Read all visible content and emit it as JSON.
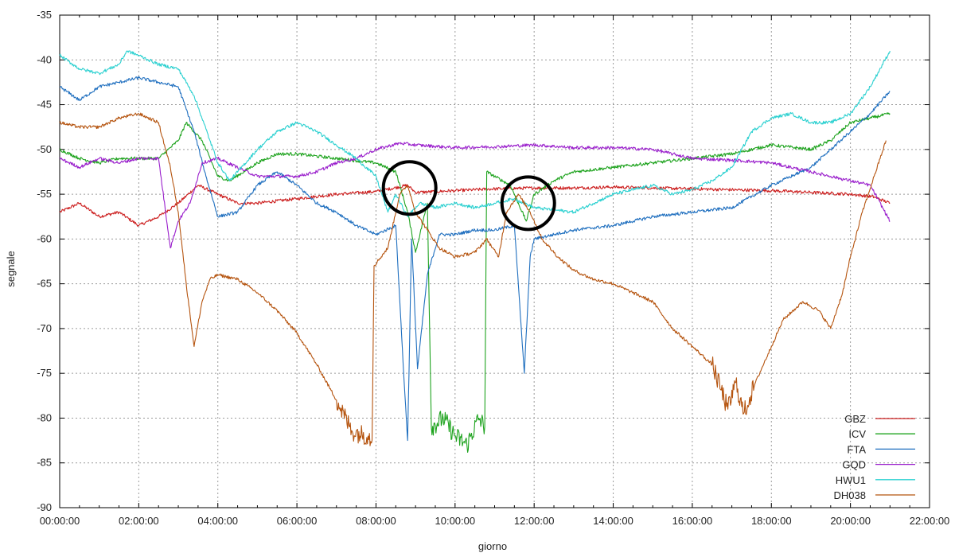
{
  "chart_data": {
    "type": "line",
    "xlabel": "giorno",
    "ylabel": "segnale",
    "xlim": [
      0,
      22
    ],
    "ylim": [
      -90,
      -35
    ],
    "x_ticks": [
      "00:00:00",
      "02:00:00",
      "04:00:00",
      "06:00:00",
      "08:00:00",
      "10:00:00",
      "12:00:00",
      "14:00:00",
      "16:00:00",
      "18:00:00",
      "20:00:00",
      "22:00:00"
    ],
    "y_ticks": [
      "-35",
      "-40",
      "-45",
      "-50",
      "-55",
      "-60",
      "-65",
      "-70",
      "-75",
      "-80",
      "-85",
      "-90"
    ],
    "grid": true,
    "legend_position": "bottom-right",
    "series": [
      {
        "name": "GBZ",
        "color": "#cc1f1f",
        "points": [
          [
            0,
            -57
          ],
          [
            0.5,
            -56
          ],
          [
            1,
            -57.5
          ],
          [
            1.5,
            -57
          ],
          [
            2,
            -58.5
          ],
          [
            2.5,
            -57.5
          ],
          [
            3,
            -56
          ],
          [
            3.5,
            -54
          ],
          [
            4,
            -55
          ],
          [
            4.5,
            -56
          ],
          [
            5,
            -56
          ],
          [
            6,
            -55.5
          ],
          [
            7,
            -55
          ],
          [
            8,
            -54.7
          ],
          [
            8.8,
            -54
          ],
          [
            9,
            -54.8
          ],
          [
            10,
            -54.6
          ],
          [
            11,
            -54.4
          ],
          [
            12,
            -54.3
          ],
          [
            13,
            -54.3
          ],
          [
            14,
            -54.2
          ],
          [
            15,
            -54.3
          ],
          [
            16,
            -54.4
          ],
          [
            17,
            -54.5
          ],
          [
            18,
            -54.6
          ],
          [
            19,
            -54.8
          ],
          [
            20,
            -55
          ],
          [
            20.6,
            -55.3
          ],
          [
            21,
            -56
          ]
        ]
      },
      {
        "name": "ICV",
        "color": "#1ea31e",
        "points": [
          [
            0,
            -50
          ],
          [
            0.5,
            -51
          ],
          [
            1,
            -51.5
          ],
          [
            1.5,
            -51
          ],
          [
            2,
            -51
          ],
          [
            2.5,
            -51
          ],
          [
            3,
            -49
          ],
          [
            3.2,
            -47
          ],
          [
            3.6,
            -49
          ],
          [
            4,
            -53
          ],
          [
            4.3,
            -53.5
          ],
          [
            5,
            -51.5
          ],
          [
            5.5,
            -50.5
          ],
          [
            6,
            -50.5
          ],
          [
            7,
            -51
          ],
          [
            8,
            -51.5
          ],
          [
            8.5,
            -52.5
          ],
          [
            8.8,
            -57
          ],
          [
            9,
            -61.5
          ],
          [
            9.3,
            -56
          ],
          [
            9.4,
            -81
          ],
          [
            9.7,
            -80
          ],
          [
            10,
            -82
          ],
          [
            10.3,
            -83
          ],
          [
            10.6,
            -80
          ],
          [
            10.75,
            -81
          ],
          [
            10.8,
            -52.5
          ],
          [
            11,
            -53
          ],
          [
            11.4,
            -54
          ],
          [
            11.8,
            -58
          ],
          [
            12,
            -55
          ],
          [
            12.5,
            -53.5
          ],
          [
            13,
            -52.5
          ],
          [
            14,
            -52
          ],
          [
            15,
            -51.5
          ],
          [
            16,
            -51
          ],
          [
            17,
            -50.5
          ],
          [
            18,
            -49.5
          ],
          [
            19,
            -50
          ],
          [
            19.5,
            -49
          ],
          [
            20,
            -47
          ],
          [
            20.5,
            -46.5
          ],
          [
            21,
            -46
          ]
        ]
      },
      {
        "name": "FTA",
        "color": "#1f6fbf",
        "points": [
          [
            0,
            -43
          ],
          [
            0.5,
            -44.5
          ],
          [
            1,
            -43
          ],
          [
            1.5,
            -42.5
          ],
          [
            2,
            -42
          ],
          [
            2.5,
            -42.5
          ],
          [
            3,
            -43
          ],
          [
            3.4,
            -48
          ],
          [
            3.7,
            -53
          ],
          [
            4,
            -57.5
          ],
          [
            4.5,
            -57
          ],
          [
            5,
            -54
          ],
          [
            5.5,
            -52.5
          ],
          [
            6,
            -54
          ],
          [
            6.5,
            -56
          ],
          [
            7,
            -57
          ],
          [
            7.5,
            -58.5
          ],
          [
            8,
            -59.5
          ],
          [
            8.5,
            -58.5
          ],
          [
            8.7,
            -75
          ],
          [
            8.8,
            -82.5
          ],
          [
            8.9,
            -60
          ],
          [
            9.05,
            -74.5
          ],
          [
            9.3,
            -64
          ],
          [
            9.6,
            -59.5
          ],
          [
            10,
            -59.5
          ],
          [
            10.5,
            -59
          ],
          [
            11,
            -59
          ],
          [
            11.5,
            -58.5
          ],
          [
            11.75,
            -75
          ],
          [
            11.9,
            -62
          ],
          [
            12,
            -60
          ],
          [
            13,
            -59
          ],
          [
            14,
            -58.5
          ],
          [
            15,
            -57.5
          ],
          [
            16,
            -57
          ],
          [
            17,
            -56.5
          ],
          [
            18,
            -54
          ],
          [
            19,
            -52
          ],
          [
            19.5,
            -50
          ],
          [
            20,
            -48
          ],
          [
            20.5,
            -46
          ],
          [
            21,
            -43.5
          ]
        ]
      },
      {
        "name": "GQD",
        "color": "#9a1fcc",
        "points": [
          [
            0,
            -51
          ],
          [
            0.5,
            -52
          ],
          [
            1,
            -51
          ],
          [
            1.5,
            -51.5
          ],
          [
            2,
            -51
          ],
          [
            2.5,
            -51
          ],
          [
            2.8,
            -61
          ],
          [
            3,
            -58
          ],
          [
            3.3,
            -56
          ],
          [
            3.6,
            -51.5
          ],
          [
            4,
            -51
          ],
          [
            4.5,
            -52
          ],
          [
            5,
            -53
          ],
          [
            6,
            -53
          ],
          [
            6.5,
            -52.5
          ],
          [
            7,
            -51.5
          ],
          [
            7.5,
            -51
          ],
          [
            8,
            -50
          ],
          [
            8.6,
            -49.3
          ],
          [
            9,
            -49.5
          ],
          [
            10,
            -49.8
          ],
          [
            11,
            -49.7
          ],
          [
            12,
            -49.5
          ],
          [
            13,
            -49.8
          ],
          [
            14,
            -49.8
          ],
          [
            15,
            -50
          ],
          [
            16,
            -51
          ],
          [
            17,
            -51.2
          ],
          [
            18,
            -51.5
          ],
          [
            19,
            -52.5
          ],
          [
            19.5,
            -53
          ],
          [
            20,
            -53.5
          ],
          [
            20.5,
            -54
          ],
          [
            21,
            -58
          ]
        ]
      },
      {
        "name": "HWU1",
        "color": "#2ad0d0",
        "points": [
          [
            0,
            -39.5
          ],
          [
            0.5,
            -41
          ],
          [
            1,
            -41.5
          ],
          [
            1.5,
            -40.5
          ],
          [
            1.7,
            -39
          ],
          [
            2,
            -39.5
          ],
          [
            2.5,
            -40.5
          ],
          [
            3,
            -41
          ],
          [
            3.4,
            -44
          ],
          [
            3.8,
            -49
          ],
          [
            4,
            -51.5
          ],
          [
            4.3,
            -53.5
          ],
          [
            4.6,
            -52
          ],
          [
            5,
            -50
          ],
          [
            5.5,
            -48
          ],
          [
            6,
            -47
          ],
          [
            6.5,
            -48
          ],
          [
            7,
            -49.5
          ],
          [
            7.5,
            -51
          ],
          [
            8,
            -53
          ],
          [
            8.3,
            -57
          ],
          [
            8.5,
            -55
          ],
          [
            8.8,
            -57.5
          ],
          [
            9.1,
            -56
          ],
          [
            9.5,
            -56.5
          ],
          [
            10,
            -56
          ],
          [
            10.5,
            -56.5
          ],
          [
            11,
            -56
          ],
          [
            11.5,
            -55.5
          ],
          [
            12,
            -56.5
          ],
          [
            13,
            -57
          ],
          [
            14,
            -55
          ],
          [
            15,
            -54
          ],
          [
            15.5,
            -55
          ],
          [
            16,
            -54.5
          ],
          [
            16.5,
            -53.5
          ],
          [
            17,
            -52
          ],
          [
            17.5,
            -48
          ],
          [
            18,
            -46.5
          ],
          [
            18.5,
            -46
          ],
          [
            19,
            -47
          ],
          [
            19.5,
            -47
          ],
          [
            20,
            -46
          ],
          [
            20.5,
            -43
          ],
          [
            21,
            -39
          ]
        ]
      },
      {
        "name": "DH038",
        "color": "#b5540f",
        "points": [
          [
            0,
            -47
          ],
          [
            0.5,
            -47.5
          ],
          [
            1,
            -47.5
          ],
          [
            1.5,
            -46.5
          ],
          [
            2,
            -46
          ],
          [
            2.5,
            -47
          ],
          [
            2.8,
            -52
          ],
          [
            3,
            -57
          ],
          [
            3.2,
            -65
          ],
          [
            3.4,
            -72
          ],
          [
            3.6,
            -67
          ],
          [
            3.8,
            -64.5
          ],
          [
            4,
            -64
          ],
          [
            4.5,
            -64.5
          ],
          [
            5,
            -66
          ],
          [
            5.5,
            -68
          ],
          [
            6,
            -70.5
          ],
          [
            6.5,
            -74
          ],
          [
            7,
            -78
          ],
          [
            7.4,
            -81.5
          ],
          [
            7.8,
            -82
          ],
          [
            7.9,
            -82.5
          ],
          [
            7.95,
            -63
          ],
          [
            8.3,
            -61
          ],
          [
            8.6,
            -55
          ],
          [
            8.8,
            -54
          ],
          [
            9,
            -57
          ],
          [
            9.3,
            -59
          ],
          [
            9.6,
            -61
          ],
          [
            10,
            -62
          ],
          [
            10.5,
            -61.5
          ],
          [
            10.8,
            -60
          ],
          [
            11.1,
            -62
          ],
          [
            11.3,
            -57
          ],
          [
            11.6,
            -55
          ],
          [
            11.9,
            -57
          ],
          [
            12.2,
            -60
          ],
          [
            12.6,
            -62
          ],
          [
            13,
            -63.5
          ],
          [
            13.5,
            -64.5
          ],
          [
            14,
            -65
          ],
          [
            14.5,
            -66
          ],
          [
            15,
            -67
          ],
          [
            15.5,
            -70
          ],
          [
            16,
            -72
          ],
          [
            16.5,
            -74
          ],
          [
            16.9,
            -79
          ],
          [
            17.1,
            -76
          ],
          [
            17.3,
            -79.5
          ],
          [
            17.6,
            -76
          ],
          [
            18,
            -72
          ],
          [
            18.3,
            -69
          ],
          [
            18.8,
            -67
          ],
          [
            19.2,
            -68
          ],
          [
            19.5,
            -70
          ],
          [
            19.8,
            -66
          ],
          [
            20,
            -62
          ],
          [
            20.3,
            -57
          ],
          [
            20.6,
            -53
          ],
          [
            20.9,
            -49
          ]
        ]
      }
    ],
    "annotations": [
      {
        "shape": "circle",
        "x": 8.85,
        "y": -54.3
      },
      {
        "shape": "circle",
        "x": 11.85,
        "y": -56.0
      }
    ]
  }
}
